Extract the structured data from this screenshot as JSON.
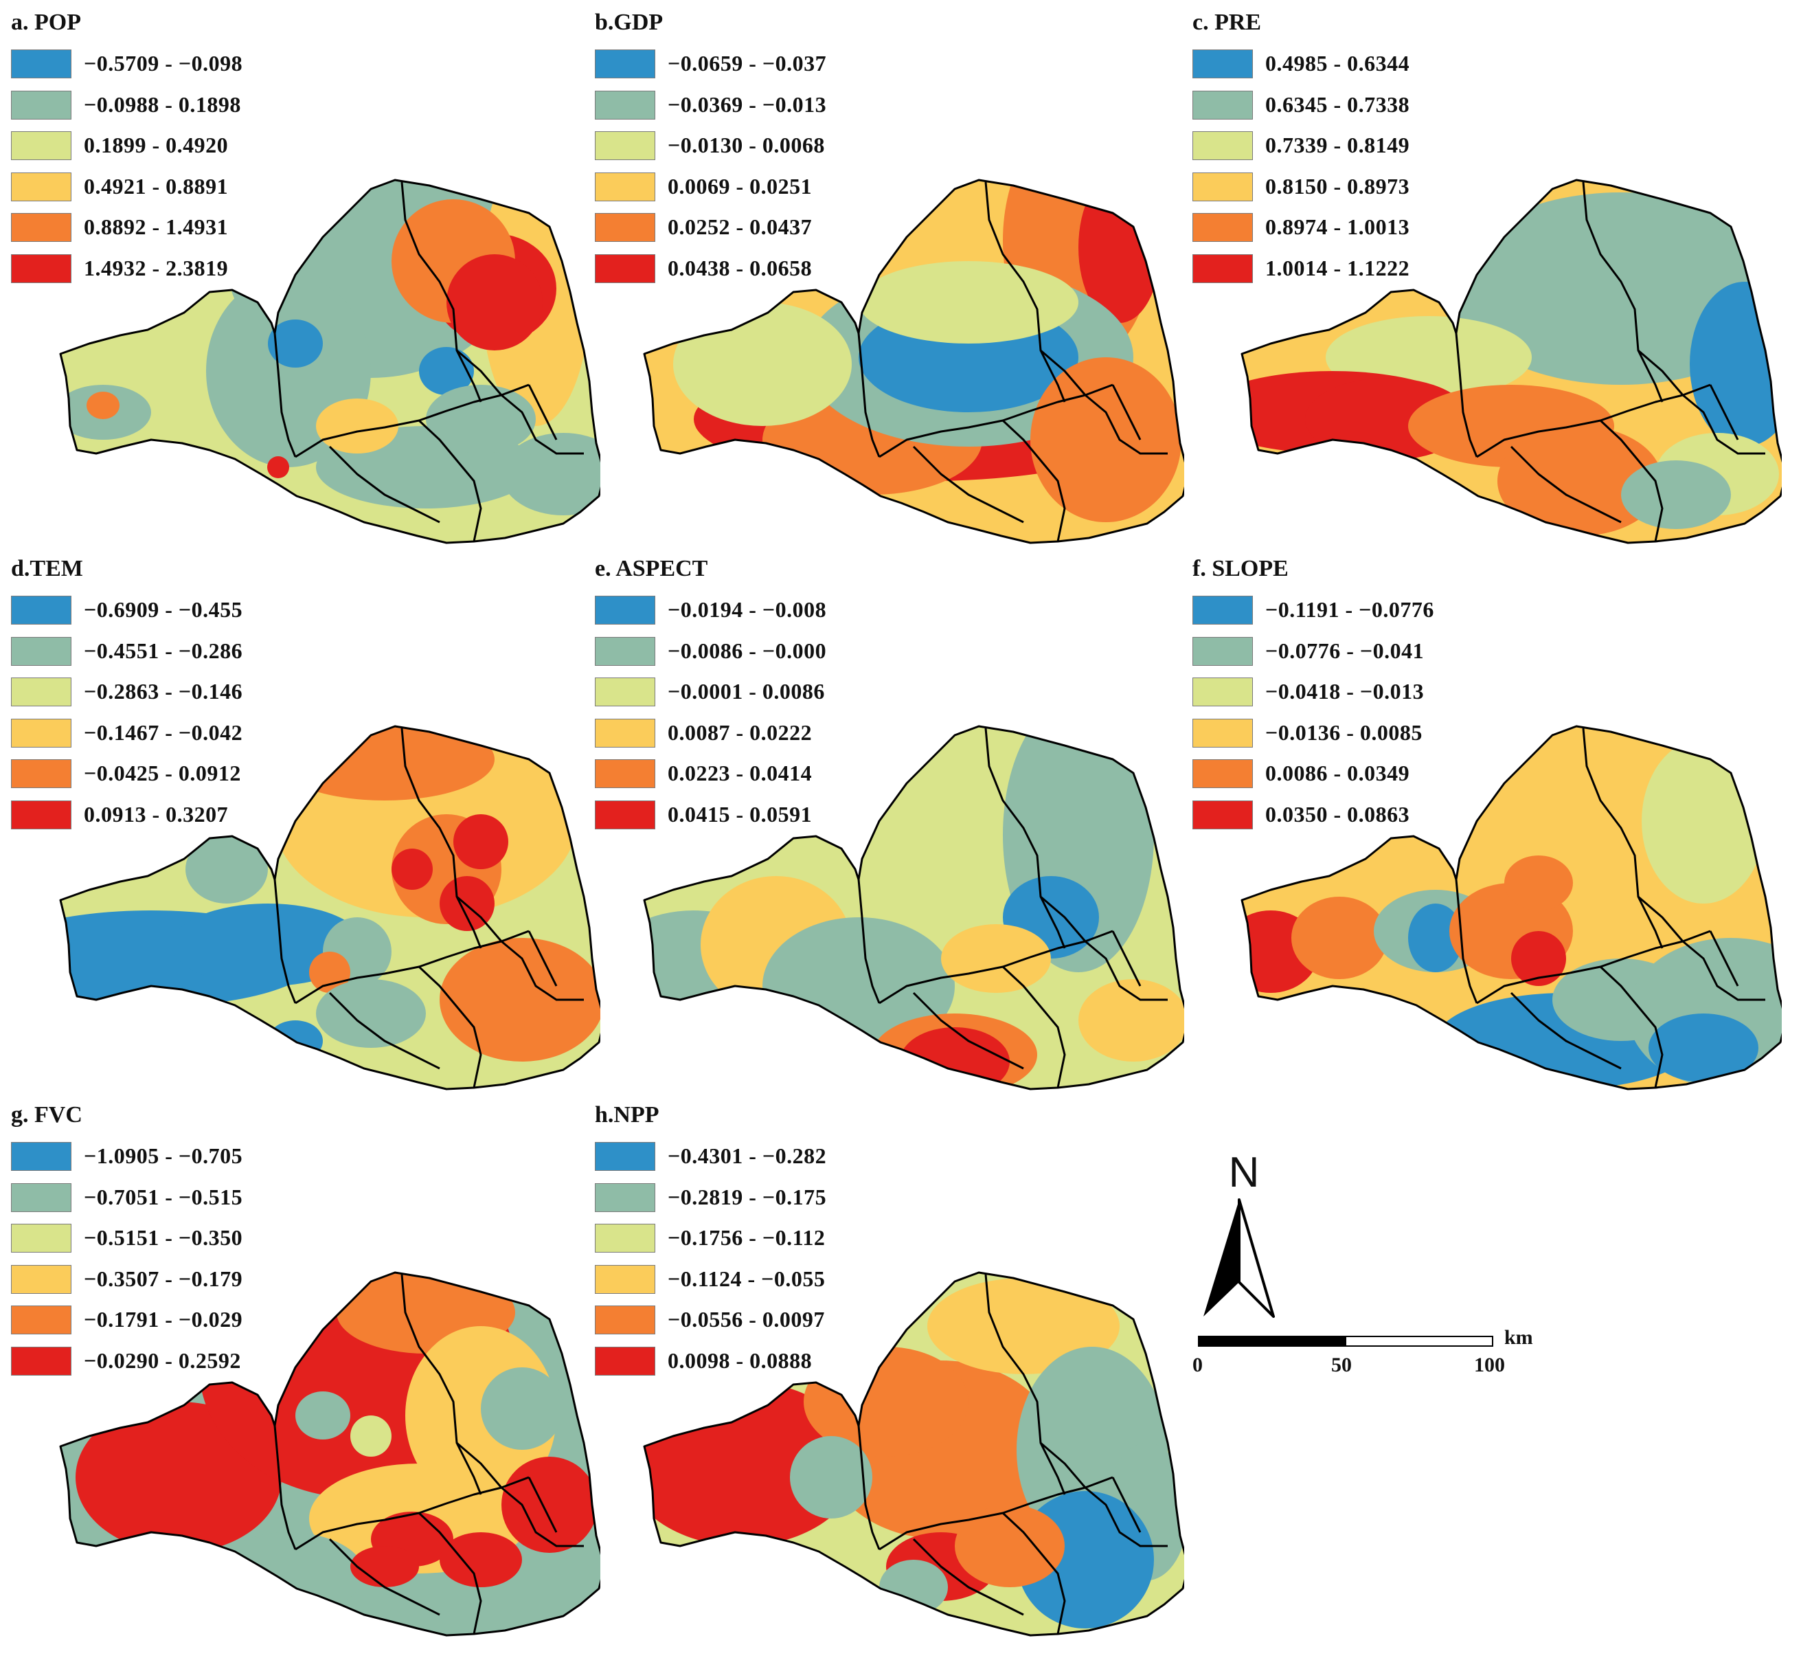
{
  "palette": [
    "#2e90c8",
    "#8fbca7",
    "#d9e48b",
    "#fbcc5a",
    "#f47f32",
    "#e3211e"
  ],
  "boundary_color": "#000000",
  "panels": [
    {
      "id": "a",
      "title": "a. POP",
      "legend": [
        "−0.5709 - −0.098",
        "−0.0988 - 0.1898",
        "0.1899 - 0.4920",
        "0.4921 - 0.8891",
        "0.8892 - 1.4931",
        "1.4932 - 2.3819"
      ]
    },
    {
      "id": "b",
      "title": "b.GDP",
      "legend": [
        "−0.0659 - −0.037",
        "−0.0369 - −0.013",
        "−0.0130 - 0.0068",
        "0.0069 - 0.0251",
        "0.0252 - 0.0437",
        "0.0438 - 0.0658"
      ]
    },
    {
      "id": "c",
      "title": "c. PRE",
      "legend": [
        "0.4985 - 0.6344",
        "0.6345 - 0.7338",
        "0.7339 - 0.8149",
        "0.8150 - 0.8973",
        "0.8974 - 1.0013",
        "1.0014 - 1.1222"
      ]
    },
    {
      "id": "d",
      "title": "d.TEM",
      "legend": [
        "−0.6909 - −0.455",
        "−0.4551 - −0.286",
        "−0.2863 - −0.146",
        "−0.1467 - −0.042",
        "−0.0425 - 0.0912",
        "0.0913 - 0.3207"
      ]
    },
    {
      "id": "e",
      "title": "e. ASPECT",
      "legend": [
        "−0.0194 - −0.008",
        "−0.0086 - −0.000",
        "−0.0001 - 0.0086",
        "0.0087 - 0.0222",
        "0.0223 - 0.0414",
        "0.0415 - 0.0591"
      ]
    },
    {
      "id": "f",
      "title": "f. SLOPE",
      "legend": [
        "−0.1191 - −0.0776",
        "−0.0776 - −0.041",
        "−0.0418 - −0.013",
        "−0.0136 - 0.0085",
        "0.0086 - 0.0349",
        "0.0350 - 0.0863"
      ]
    },
    {
      "id": "g",
      "title": "g. FVC",
      "legend": [
        "−1.0905 - −0.705",
        "−0.7051 - −0.515",
        "−0.5151 - −0.350",
        "−0.3507 - −0.179",
        "−0.1791 - −0.029",
        "−0.0290 - 0.2592"
      ]
    },
    {
      "id": "h",
      "title": "h.NPP",
      "legend": [
        "−0.4301 - −0.282",
        "−0.2819 - −0.175",
        "−0.1756 - −0.112",
        "−0.1124 - −0.055",
        "−0.0556 - 0.0097",
        "0.0098 - 0.0888"
      ]
    }
  ],
  "north_arrow": {
    "label": "N"
  },
  "scale_bar": {
    "unit": "km",
    "ticks": [
      "0",
      "50",
      "100"
    ]
  }
}
